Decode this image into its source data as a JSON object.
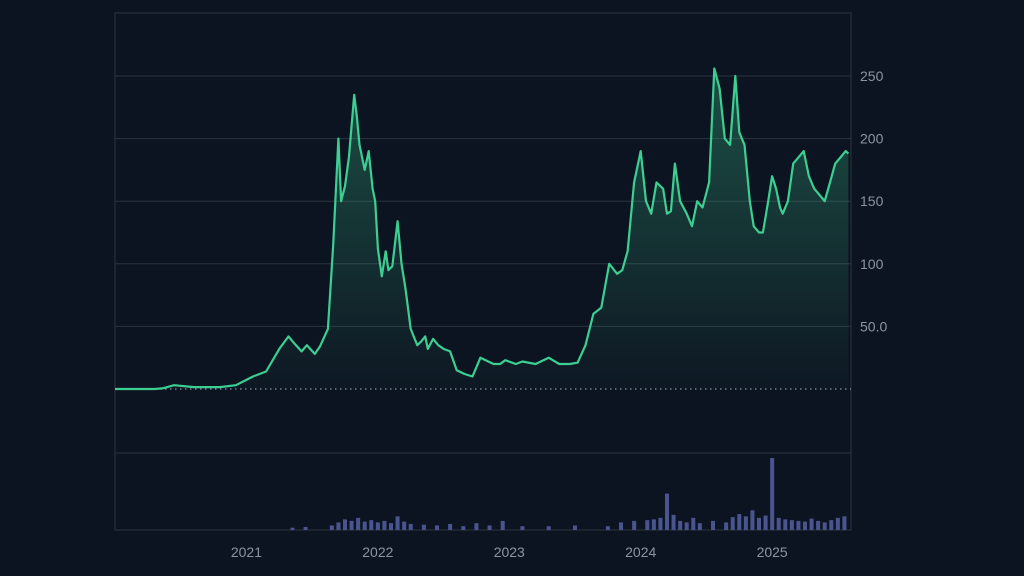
{
  "colors": {
    "background": "#0d1421",
    "line": "#3ccf91",
    "grid": "#2a3340",
    "volume": "#4a5590",
    "baseline_dots": "#8c93a3"
  },
  "chart_data": [
    {
      "type": "area",
      "x_axis": "time",
      "ylim": [
        -10,
        300
      ],
      "y_ticks": [
        "50.0",
        "100",
        "150",
        "200",
        "250"
      ],
      "x_ticks": [
        "2021",
        "2022",
        "2023",
        "2024",
        "2025"
      ],
      "baseline": 0,
      "grid": "horizontal",
      "y_axis_side": "right",
      "series": [
        {
          "x": [
            2020.0,
            2020.3,
            2020.36,
            2020.45,
            2020.6,
            2020.8,
            2020.92,
            2021.05,
            2021.15,
            2021.25,
            2021.32,
            2021.36,
            2021.42,
            2021.46,
            2021.52,
            2021.56,
            2021.62,
            2021.66,
            2021.7,
            2021.72,
            2021.75,
            2021.78,
            2021.82,
            2021.84,
            2021.86,
            2021.9,
            2021.93,
            2021.96,
            2021.98,
            2022.0,
            2022.03,
            2022.06,
            2022.08,
            2022.11,
            2022.15,
            2022.18,
            2022.21,
            2022.25,
            2022.28,
            2022.3,
            2022.33,
            2022.36,
            2022.38,
            2022.42,
            2022.46,
            2022.5,
            2022.55,
            2022.6,
            2022.66,
            2022.72,
            2022.78,
            2022.84,
            2022.88,
            2022.93,
            2022.97,
            2023.05,
            2023.1,
            2023.2,
            2023.3,
            2023.38,
            2023.46,
            2023.52,
            2023.58,
            2023.64,
            2023.7,
            2023.76,
            2023.82,
            2023.86,
            2023.9,
            2023.95,
            2024.0,
            2024.04,
            2024.08,
            2024.12,
            2024.17,
            2024.2,
            2024.23,
            2024.26,
            2024.3,
            2024.35,
            2024.39,
            2024.43,
            2024.47,
            2024.52,
            2024.56,
            2024.6,
            2024.64,
            2024.68,
            2024.72,
            2024.75,
            2024.79,
            2024.83,
            2024.86,
            2024.9,
            2024.93,
            2024.97,
            2025.0,
            2025.03,
            2025.06,
            2025.08,
            2025.12,
            2025.16,
            2025.2,
            2025.24,
            2025.28,
            2025.32,
            2025.36,
            2025.4,
            2025.44,
            2025.48,
            2025.52,
            2025.56,
            2025.58
          ],
          "values": [
            0,
            0,
            0.5,
            3,
            1.5,
            1.5,
            3,
            10,
            14,
            32,
            42,
            37,
            30,
            35,
            28,
            34,
            48,
            115,
            200,
            150,
            162,
            185,
            235,
            218,
            195,
            175,
            190,
            160,
            150,
            112,
            90,
            110,
            95,
            98,
            134,
            100,
            80,
            48,
            40,
            35,
            38,
            42,
            32,
            40,
            35,
            32,
            30,
            15,
            12,
            10,
            25,
            22,
            20,
            20,
            23,
            20,
            22,
            20,
            25,
            20,
            20,
            21,
            35,
            60,
            65,
            100,
            92,
            95,
            110,
            165,
            190,
            150,
            140,
            165,
            160,
            140,
            142,
            180,
            150,
            140,
            130,
            150,
            145,
            165,
            256,
            240,
            200,
            195,
            250,
            205,
            195,
            150,
            130,
            125,
            125,
            150,
            170,
            160,
            145,
            140,
            150,
            180,
            185,
            190,
            170,
            160,
            155,
            150,
            165,
            180,
            185,
            190,
            188
          ]
        }
      ]
    },
    {
      "type": "bar",
      "x_axis": "time",
      "series": [
        {
          "x": [
            2021.35,
            2021.45,
            2021.65,
            2021.7,
            2021.75,
            2021.8,
            2021.85,
            2021.9,
            2021.95,
            2022.0,
            2022.05,
            2022.1,
            2022.15,
            2022.2,
            2022.25,
            2022.35,
            2022.45,
            2022.55,
            2022.65,
            2022.75,
            2022.85,
            2022.95,
            2023.1,
            2023.3,
            2023.5,
            2023.75,
            2023.85,
            2023.95,
            2024.05,
            2024.1,
            2024.15,
            2024.2,
            2024.25,
            2024.3,
            2024.35,
            2024.4,
            2024.45,
            2024.55,
            2024.65,
            2024.7,
            2024.75,
            2024.8,
            2024.85,
            2024.9,
            2024.95,
            2025.0,
            2025.05,
            2025.1,
            2025.15,
            2025.2,
            2025.25,
            2025.3,
            2025.35,
            2025.4,
            2025.45,
            2025.5,
            2025.55
          ],
          "values": [
            0.3,
            0.4,
            0.6,
            1.0,
            1.4,
            1.2,
            1.6,
            1.1,
            1.3,
            1.0,
            1.2,
            0.9,
            1.8,
            1.1,
            0.8,
            0.7,
            0.6,
            0.8,
            0.5,
            0.9,
            0.6,
            1.2,
            0.5,
            0.5,
            0.6,
            0.5,
            1.0,
            1.2,
            1.3,
            1.4,
            1.6,
            4.8,
            2.0,
            1.2,
            1.0,
            1.6,
            0.9,
            1.2,
            1.0,
            1.7,
            2.1,
            1.8,
            2.6,
            1.6,
            1.9,
            9.5,
            1.6,
            1.4,
            1.3,
            1.2,
            1.1,
            1.5,
            1.2,
            1.0,
            1.3,
            1.6,
            1.8
          ]
        }
      ]
    }
  ]
}
